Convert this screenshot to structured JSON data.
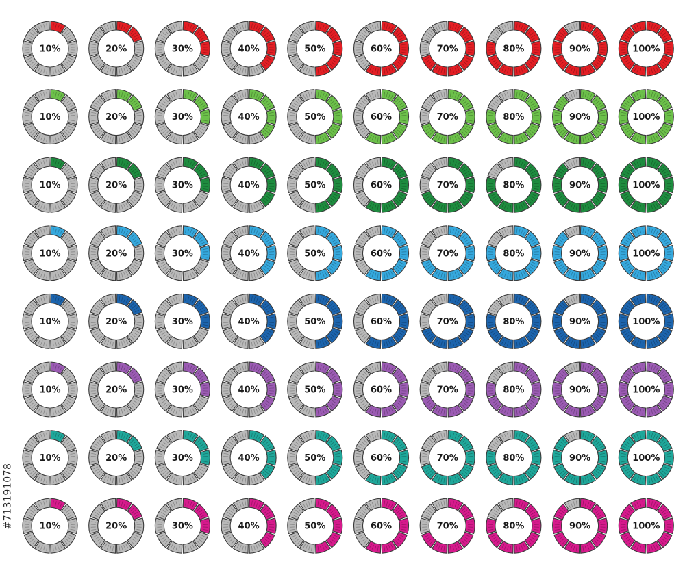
{
  "rows": [
    {
      "color": "#e31e24",
      "items": [
        {
          "label": "10%",
          "value": 10
        },
        {
          "label": "20%",
          "value": 20
        },
        {
          "label": "30%",
          "value": 30
        },
        {
          "label": "40%",
          "value": 40
        },
        {
          "label": "50%",
          "value": 50
        },
        {
          "label": "60%",
          "value": 60
        },
        {
          "label": "70%",
          "value": 70
        },
        {
          "label": "80%",
          "value": 80
        },
        {
          "label": "90%",
          "value": 90
        },
        {
          "label": "100%",
          "value": 100
        }
      ]
    },
    {
      "color": "#6cc04a",
      "items": [
        {
          "label": "10%",
          "value": 10
        },
        {
          "label": "20%",
          "value": 20
        },
        {
          "label": "30%",
          "value": 30
        },
        {
          "label": "40%",
          "value": 40
        },
        {
          "label": "50%",
          "value": 50
        },
        {
          "label": "60%",
          "value": 60
        },
        {
          "label": "70%",
          "value": 70
        },
        {
          "label": "80%",
          "value": 80
        },
        {
          "label": "90%",
          "value": 90
        },
        {
          "label": "100%",
          "value": 100
        }
      ]
    },
    {
      "color": "#1e8c3f",
      "items": [
        {
          "label": "10%",
          "value": 10
        },
        {
          "label": "20%",
          "value": 20
        },
        {
          "label": "30%",
          "value": 30
        },
        {
          "label": "40%",
          "value": 40
        },
        {
          "label": "50%",
          "value": 50
        },
        {
          "label": "60%",
          "value": 60
        },
        {
          "label": "70%",
          "value": 70
        },
        {
          "label": "80%",
          "value": 80
        },
        {
          "label": "90%",
          "value": 90
        },
        {
          "label": "100%",
          "value": 100
        }
      ]
    },
    {
      "color": "#35a8dd",
      "items": [
        {
          "label": "10%",
          "value": 10
        },
        {
          "label": "20%",
          "value": 20
        },
        {
          "label": "30%",
          "value": 30
        },
        {
          "label": "40%",
          "value": 40
        },
        {
          "label": "50%",
          "value": 50
        },
        {
          "label": "60%",
          "value": 60
        },
        {
          "label": "70%",
          "value": 70
        },
        {
          "label": "80%",
          "value": 80
        },
        {
          "label": "90%",
          "value": 90
        },
        {
          "label": "100%",
          "value": 100
        }
      ]
    },
    {
      "color": "#1c64ad",
      "items": [
        {
          "label": "10%",
          "value": 10
        },
        {
          "label": "20%",
          "value": 20
        },
        {
          "label": "30%",
          "value": 30
        },
        {
          "label": "40%",
          "value": 40
        },
        {
          "label": "50%",
          "value": 50
        },
        {
          "label": "60%",
          "value": 60
        },
        {
          "label": "70%",
          "value": 70
        },
        {
          "label": "80%",
          "value": 80
        },
        {
          "label": "90%",
          "value": 90
        },
        {
          "label": "100%",
          "value": 100
        }
      ]
    },
    {
      "color": "#9b5bb3",
      "items": [
        {
          "label": "10%",
          "value": 10
        },
        {
          "label": "20%",
          "value": 20
        },
        {
          "label": "30%",
          "value": 30
        },
        {
          "label": "40%",
          "value": 40
        },
        {
          "label": "50%",
          "value": 50
        },
        {
          "label": "60%",
          "value": 60
        },
        {
          "label": "70%",
          "value": 70
        },
        {
          "label": "80%",
          "value": 80
        },
        {
          "label": "90%",
          "value": 90
        },
        {
          "label": "100%",
          "value": 100
        }
      ]
    },
    {
      "color": "#1fa79a",
      "items": [
        {
          "label": "10%",
          "value": 10
        },
        {
          "label": "20%",
          "value": 20
        },
        {
          "label": "30%",
          "value": 30
        },
        {
          "label": "40%",
          "value": 40
        },
        {
          "label": "50%",
          "value": 50
        },
        {
          "label": "60%",
          "value": 60
        },
        {
          "label": "70%",
          "value": 70
        },
        {
          "label": "80%",
          "value": 80
        },
        {
          "label": "90%",
          "value": 90
        },
        {
          "label": "100%",
          "value": 100
        }
      ]
    },
    {
      "color": "#d61a8c",
      "items": [
        {
          "label": "10%",
          "value": 10
        },
        {
          "label": "20%",
          "value": 20
        },
        {
          "label": "30%",
          "value": 30
        },
        {
          "label": "40%",
          "value": 40
        },
        {
          "label": "50%",
          "value": 50
        },
        {
          "label": "60%",
          "value": 60
        },
        {
          "label": "70%",
          "value": 70
        },
        {
          "label": "80%",
          "value": 80
        },
        {
          "label": "90%",
          "value": 90
        },
        {
          "label": "100%",
          "value": 100
        }
      ]
    }
  ],
  "inactive_color": "#b9b9b9",
  "outline_color": "#3a3a3a",
  "watermark_text": "#713191078"
}
